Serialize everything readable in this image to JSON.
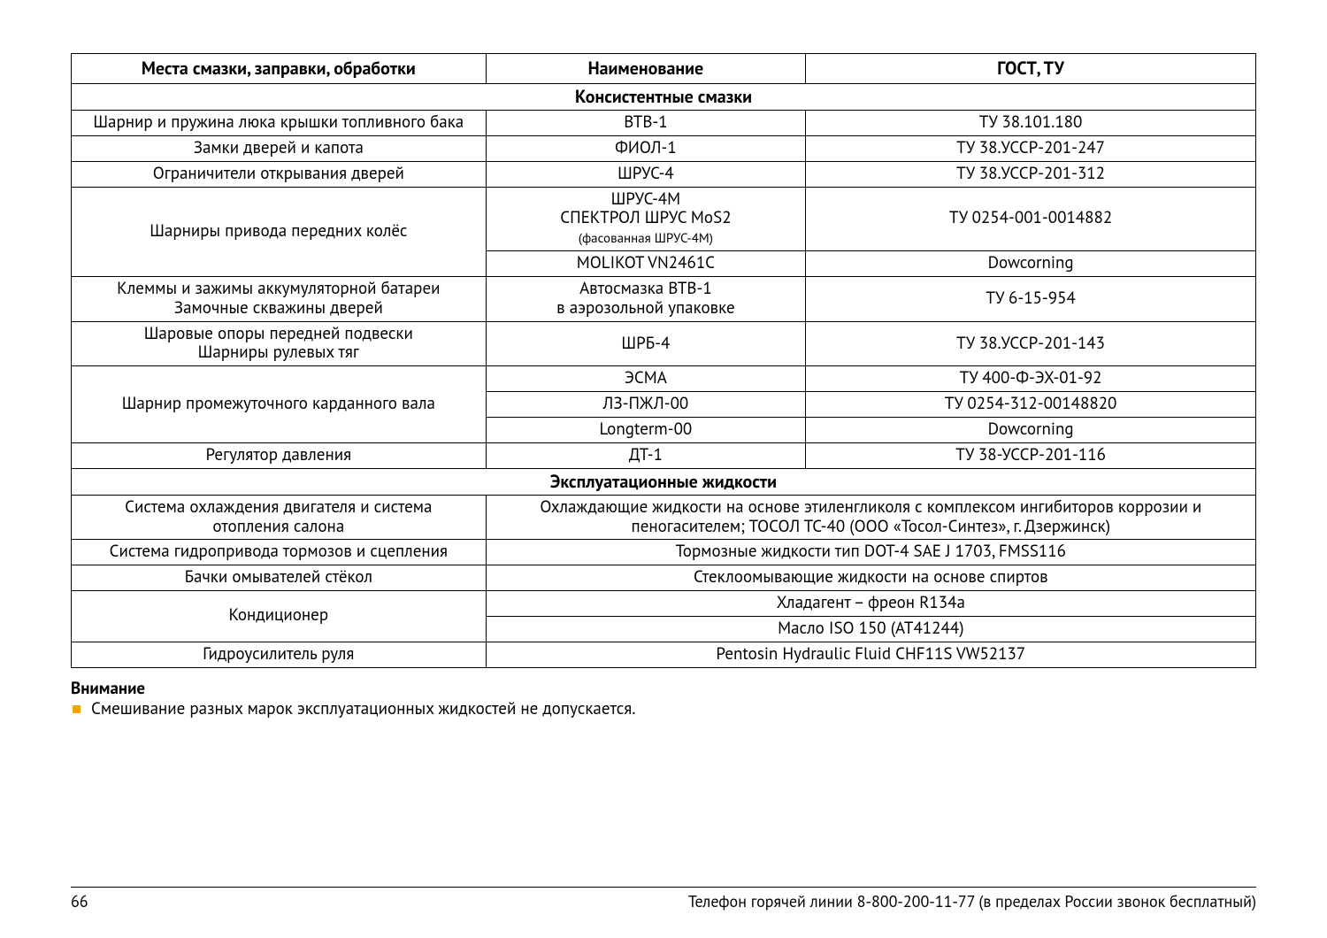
{
  "table": {
    "headers": {
      "col1": "Места смазки, заправки, обработки",
      "col2": "Наименование",
      "col3": "ГОСТ, ТУ"
    },
    "section1_title": "Консистентные смазки",
    "r1": {
      "a": "Шарнир и пружина люка крышки топливного бака",
      "b": "ВТВ-1",
      "c": "ТУ 38.101.180"
    },
    "r2": {
      "a": "Замки дверей и капота",
      "b": "ФИОЛ-1",
      "c": "ТУ 38.УССР-201-247"
    },
    "r3": {
      "a": "Ограничители открывания дверей",
      "b": "ШРУС-4",
      "c": "ТУ 38.УССР-201-312"
    },
    "r4": {
      "a": "Шарниры привода передних колёс",
      "b1": "ШРУС-4М",
      "b2": "СПЕКТРОЛ ШРУС MoS2",
      "b3": "(фасованная ШРУС-4М)",
      "c": "ТУ 0254-001-0014882",
      "b_alt": "MOLIKOT VN2461C",
      "c_alt": "Dowcorning"
    },
    "r5": {
      "a1": "Клеммы и зажимы аккумуляторной батареи",
      "a2": "Замочные скважины дверей",
      "b1": "Автосмазка ВТВ-1",
      "b2": "в аэрозольной упаковке",
      "c": "ТУ 6-15-954"
    },
    "r6": {
      "a1": "Шаровые опоры передней подвески",
      "a2": "Шарниры рулевых тяг",
      "b": "ШРБ-4",
      "c": "ТУ 38.УССР-201-143"
    },
    "r7": {
      "a": "Шарнир промежуточного карданного вала",
      "v1b": "ЭСМА",
      "v1c": "ТУ 400-Ф-ЭХ-01-92",
      "v2b": "ЛЗ-ПЖЛ-00",
      "v2c": "ТУ 0254-312-00148820",
      "v3b": "Longterm-00",
      "v3c": "Dowcorning"
    },
    "r8": {
      "a": "Регулятор давления",
      "b": "ДТ-1",
      "c": "ТУ 38-УССР-201-116"
    },
    "section2_title": "Эксплуатационные жидкости",
    "r9": {
      "a1": "Система охлаждения двигателя и система",
      "a2": "отопления салона",
      "b": "Охлаждающие жидкости на основе этиленгликоля с комплексом ингибиторов коррозии и пеногасителем; ТОСОЛ ТС-40 (ООО «Тосол-Синтез», г. Дзержинск)"
    },
    "r10": {
      "a": "Система гидропривода тормозов и сцепления",
      "b": "Тормозные жидкости тип DOT-4 SAE J 1703, FMSS116"
    },
    "r11": {
      "a": "Бачки омывателей стёкол",
      "b": "Стеклоомывающие жидкости на основе спиртов"
    },
    "r12": {
      "a": "Кондиционер",
      "b1": "Хладагент – фреон R134a",
      "b2": "Масло ISO 150 (AT41244)"
    },
    "r13": {
      "a": "Гидроусилитель руля",
      "b": "Pentosin Hydraulic Fluid CHF11S VW52137"
    }
  },
  "attention": {
    "label": "Внимание",
    "text": "Смешивание разных марок эксплуатационных жидкостей не допускается."
  },
  "footer": {
    "page": "66",
    "hotline": "Телефон горячей линии 8-800-200-11-77 (в пределах России звонок бесплатный)"
  },
  "colors": {
    "bullet": "#f2a300",
    "border": "#000000",
    "text": "#000000",
    "background": "#ffffff"
  }
}
